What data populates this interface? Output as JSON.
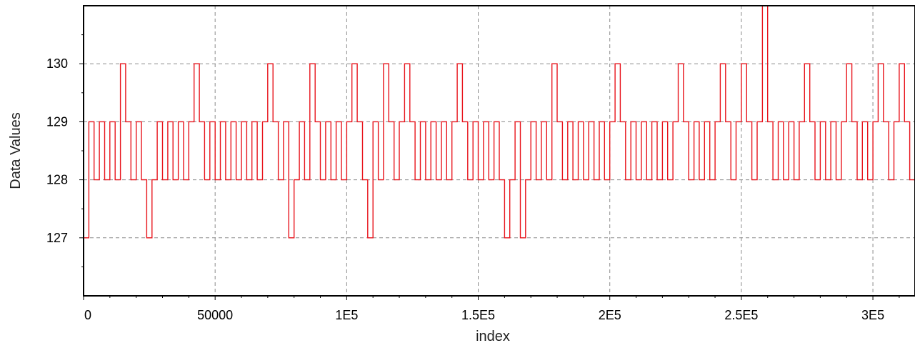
{
  "chart_data": {
    "type": "line",
    "xlabel": "index",
    "ylabel": "Data Values",
    "xlim": [
      0,
      316000
    ],
    "ylim": [
      126.0,
      131.0
    ],
    "x_ticks": [
      0,
      50000,
      100000,
      150000,
      200000,
      250000,
      300000
    ],
    "x_tick_labels": [
      "0",
      "50000",
      "1E5",
      "1.5E5",
      "2E5",
      "2.5E5",
      "3E5"
    ],
    "y_ticks": [
      127,
      128,
      129,
      130
    ],
    "y_tick_labels": [
      "127",
      "128",
      "129",
      "130"
    ],
    "grid": true,
    "series_color": "#e8141c",
    "series": [
      {
        "x": [
          0,
          2000,
          4000,
          6000,
          8000,
          10000,
          12000,
          14000,
          16000,
          18000,
          20000,
          22000,
          24000,
          26000,
          28000,
          30000,
          32000,
          34000,
          36000,
          38000,
          40000,
          42000,
          44000,
          46000,
          48000,
          50000,
          52000,
          54000,
          56000,
          58000,
          60000,
          62000,
          64000,
          66000,
          68000,
          70000,
          72000,
          74000,
          76000,
          78000,
          80000,
          82000,
          84000,
          86000,
          88000,
          90000,
          92000,
          94000,
          96000,
          98000,
          100000,
          102000,
          104000,
          106000,
          108000,
          110000,
          112000,
          114000,
          116000,
          118000,
          120000,
          122000,
          124000,
          126000,
          128000,
          130000,
          132000,
          134000,
          136000,
          138000,
          140000,
          142000,
          144000,
          146000,
          148000,
          150000,
          152000,
          154000,
          156000,
          158000,
          160000,
          162000,
          164000,
          166000,
          168000,
          170000,
          172000,
          174000,
          176000,
          178000,
          180000,
          182000,
          184000,
          186000,
          188000,
          190000,
          192000,
          194000,
          196000,
          198000,
          200000,
          202000,
          204000,
          206000,
          208000,
          210000,
          212000,
          214000,
          216000,
          218000,
          220000,
          222000,
          224000,
          226000,
          228000,
          230000,
          232000,
          234000,
          236000,
          238000,
          240000,
          242000,
          244000,
          246000,
          248000,
          250000,
          252000,
          254000,
          256000,
          258000,
          260000,
          262000,
          264000,
          266000,
          268000,
          270000,
          272000,
          274000,
          276000,
          278000,
          280000,
          282000,
          284000,
          286000,
          288000,
          290000,
          292000,
          294000,
          296000,
          298000,
          300000,
          302000,
          304000,
          306000,
          308000,
          310000,
          312000,
          314000,
          316000
        ],
        "y": [
          127,
          129,
          128,
          129,
          128,
          129,
          128,
          130,
          129,
          128,
          129,
          128,
          127,
          128,
          129,
          128,
          129,
          128,
          129,
          128,
          129,
          130,
          129,
          128,
          129,
          128,
          129,
          128,
          129,
          128,
          129,
          128,
          129,
          128,
          129,
          130,
          129,
          128,
          129,
          127,
          128,
          129,
          128,
          130,
          129,
          128,
          129,
          128,
          129,
          128,
          129,
          130,
          129,
          128,
          127,
          129,
          128,
          130,
          129,
          128,
          129,
          130,
          129,
          128,
          129,
          128,
          129,
          128,
          129,
          128,
          129,
          130,
          129,
          128,
          129,
          128,
          129,
          128,
          129,
          128,
          127,
          128,
          129,
          127,
          128,
          129,
          128,
          129,
          128,
          130,
          129,
          128,
          129,
          128,
          129,
          128,
          129,
          128,
          129,
          128,
          129,
          130,
          129,
          128,
          129,
          128,
          129,
          128,
          129,
          128,
          129,
          128,
          129,
          130,
          129,
          128,
          129,
          128,
          129,
          128,
          129,
          130,
          129,
          128,
          129,
          130,
          129,
          128,
          129,
          131,
          129,
          128,
          129,
          128,
          129,
          128,
          129,
          130,
          129,
          128,
          129,
          128,
          129,
          128,
          129,
          130,
          129,
          128,
          129,
          128,
          129,
          130,
          129,
          128,
          129,
          130,
          129,
          128,
          129
        ]
      }
    ]
  }
}
